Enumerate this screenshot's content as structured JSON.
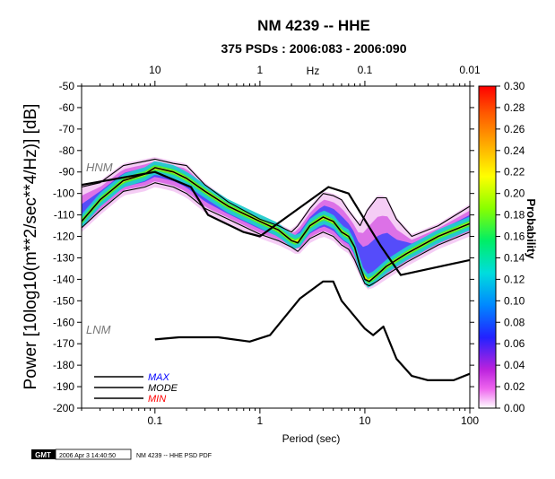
{
  "chart_data": {
    "type": "heatmap",
    "title": "NM 4239 -- HHE",
    "subtitle": "375 PSDs : 2006:083 - 2006:090",
    "xlabel": "Period (sec)",
    "x_top_label": "Hz",
    "ylabel": "Power [10log10(m**2/sec**4/Hz)] [dB]",
    "xscale": "log",
    "xlim": [
      0.02,
      100
    ],
    "ylim": [
      -200,
      -50
    ],
    "x_ticks": [
      "0.1",
      "1",
      "10",
      "100"
    ],
    "x_top_ticks": [
      "10",
      "1",
      "0.1",
      "0.01"
    ],
    "y_ticks": [
      "-50",
      "-60",
      "-70",
      "-80",
      "-90",
      "-100",
      "-110",
      "-120",
      "-130",
      "-140",
      "-150",
      "-160",
      "-170",
      "-180",
      "-190",
      "-200"
    ],
    "colorbar_label": "Probability",
    "colorbar_range": [
      0,
      0.3
    ],
    "colorbar_ticks": [
      "0.30",
      "0.28",
      "0.26",
      "0.24",
      "0.22",
      "0.20",
      "0.18",
      "0.16",
      "0.14",
      "0.12",
      "0.10",
      "0.08",
      "0.06",
      "0.04",
      "0.02",
      "0.00"
    ],
    "noise_models": [
      {
        "name": "HNM",
        "points": [
          [
            0.02,
            -96
          ],
          [
            0.1,
            -90
          ],
          [
            0.22,
            -97
          ],
          [
            0.32,
            -110
          ],
          [
            0.7,
            -118
          ],
          [
            1.0,
            -120
          ],
          [
            4.5,
            -97
          ],
          [
            7.0,
            -100
          ],
          [
            14,
            -124
          ],
          [
            22,
            -138
          ],
          [
            100,
            -131
          ]
        ]
      },
      {
        "name": "LNM",
        "points": [
          [
            0.1,
            -168
          ],
          [
            0.17,
            -167
          ],
          [
            0.4,
            -167
          ],
          [
            0.8,
            -169
          ],
          [
            1.25,
            -166
          ],
          [
            2.4,
            -149
          ],
          [
            4.0,
            -141
          ],
          [
            5.0,
            -141
          ],
          [
            6.0,
            -150
          ],
          [
            10,
            -163
          ],
          [
            12,
            -166
          ],
          [
            15,
            -162
          ],
          [
            20,
            -177
          ],
          [
            28,
            -185
          ],
          [
            40,
            -187
          ],
          [
            70,
            -187
          ],
          [
            100,
            -184
          ]
        ]
      }
    ],
    "series": [
      {
        "name": "MAX",
        "points": [
          [
            0.02,
            -97
          ],
          [
            0.03,
            -95
          ],
          [
            0.05,
            -87
          ],
          [
            0.08,
            -85
          ],
          [
            0.1,
            -84
          ],
          [
            0.15,
            -86
          ],
          [
            0.2,
            -87
          ],
          [
            0.3,
            -96
          ],
          [
            0.5,
            -104
          ],
          [
            1.0,
            -112
          ],
          [
            1.5,
            -115
          ],
          [
            2.0,
            -118
          ],
          [
            2.3,
            -115
          ],
          [
            3.0,
            -107
          ],
          [
            4.0,
            -100
          ],
          [
            5.0,
            -101
          ],
          [
            6.0,
            -103
          ],
          [
            7.0,
            -108
          ],
          [
            9.0,
            -115
          ],
          [
            10.5,
            -108
          ],
          [
            13,
            -102
          ],
          [
            16,
            -102
          ],
          [
            20,
            -112
          ],
          [
            28,
            -120
          ],
          [
            50,
            -115
          ],
          [
            100,
            -106
          ]
        ]
      },
      {
        "name": "MODE",
        "points": [
          [
            0.02,
            -113
          ],
          [
            0.03,
            -103
          ],
          [
            0.05,
            -94
          ],
          [
            0.08,
            -91
          ],
          [
            0.1,
            -88
          ],
          [
            0.15,
            -90
          ],
          [
            0.2,
            -93
          ],
          [
            0.3,
            -99
          ],
          [
            0.5,
            -106
          ],
          [
            1.0,
            -113
          ],
          [
            1.5,
            -117
          ],
          [
            2.0,
            -122
          ],
          [
            2.3,
            -123
          ],
          [
            3.0,
            -115
          ],
          [
            4.0,
            -111
          ],
          [
            5.0,
            -113
          ],
          [
            6.0,
            -118
          ],
          [
            7.0,
            -120
          ],
          [
            8.0,
            -125
          ],
          [
            9.0,
            -134
          ],
          [
            10,
            -140
          ],
          [
            11,
            -141
          ],
          [
            13,
            -138
          ],
          [
            16,
            -134
          ],
          [
            25,
            -128
          ],
          [
            50,
            -120
          ],
          [
            100,
            -114
          ]
        ]
      },
      {
        "name": "MIN",
        "points": [
          [
            0.02,
            -116
          ],
          [
            0.03,
            -108
          ],
          [
            0.05,
            -99
          ],
          [
            0.08,
            -97
          ],
          [
            0.1,
            -95
          ],
          [
            0.15,
            -97
          ],
          [
            0.2,
            -100
          ],
          [
            0.3,
            -107
          ],
          [
            0.5,
            -112
          ],
          [
            1.0,
            -119
          ],
          [
            1.5,
            -122
          ],
          [
            2.0,
            -125
          ],
          [
            2.3,
            -127
          ],
          [
            3.0,
            -121
          ],
          [
            4.0,
            -118
          ],
          [
            5.0,
            -120
          ],
          [
            6.0,
            -124
          ],
          [
            7.0,
            -126
          ],
          [
            8.0,
            -131
          ],
          [
            9.0,
            -137
          ],
          [
            10,
            -142
          ],
          [
            11,
            -143
          ],
          [
            13,
            -141
          ],
          [
            16,
            -138
          ],
          [
            25,
            -132
          ],
          [
            50,
            -124
          ],
          [
            100,
            -118
          ]
        ]
      }
    ],
    "legend": [
      "MAX",
      "MODE",
      "MIN"
    ],
    "annotations": [
      "HNM",
      "LNM"
    ]
  },
  "footer": {
    "logo": "GMT",
    "timestamp": "2006 Apr  3 14:40:50",
    "caption": "NM 4239 -- HHE PSD PDF"
  },
  "colors": {
    "max": "#0000ff",
    "mode": "#000000",
    "min": "#ff0000",
    "model_label": "#777777"
  }
}
